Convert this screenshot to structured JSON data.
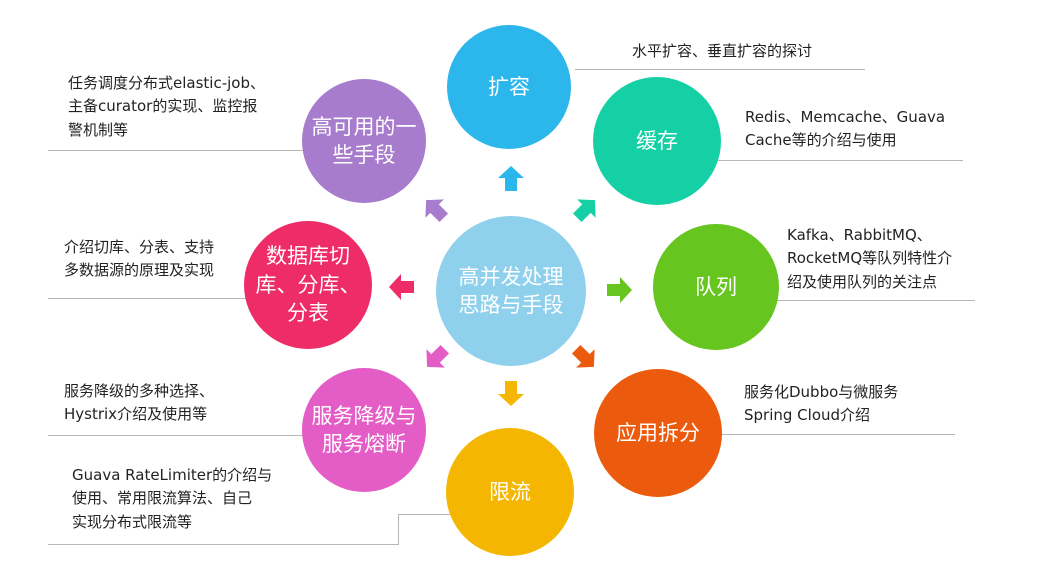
{
  "center": {
    "label": "高并发处理\n思路与手段",
    "color": "#8fd0ec"
  },
  "nodes": [
    {
      "id": "kuorong",
      "label": "扩容",
      "color": "#2bb6ec",
      "desc": "水平扩容、垂直扩容的探讨"
    },
    {
      "id": "huancun",
      "label": "缓存",
      "color": "#14d0a4",
      "desc": "Redis、Memcache、Guava\nCache等的介绍与使用"
    },
    {
      "id": "duilie",
      "label": "队列",
      "color": "#66c51f",
      "desc": "Kafka、RabbitMQ、\nRocketMQ等队列特性介\n绍及使用队列的关注点"
    },
    {
      "id": "yingyong",
      "label": "应用拆分",
      "color": "#ec5a0e",
      "desc": "服务化Dubbo与微服务\nSpring Cloud介绍"
    },
    {
      "id": "xianliu",
      "label": "限流",
      "color": "#f4b600",
      "desc": "Guava RateLimiter的介绍与\n使用、常用限流算法、自己\n实现分布式限流等"
    },
    {
      "id": "jiangji",
      "label": "服务降级与\n服务熔断",
      "color": "#e45cc6",
      "desc": "服务降级的多种选择、\nHystrix介绍及使用等"
    },
    {
      "id": "shujuku",
      "label": "数据库切\n库、分库、\n分表",
      "color": "#ee2c68",
      "desc": "介绍切库、分表、支持\n多数据源的原理及实现"
    },
    {
      "id": "gaokeyong",
      "label": "高可用的一\n些手段",
      "color": "#a77ccc",
      "desc": "任务调度分布式elastic-job、\n主备curator的实现、监控报\n警机制等"
    }
  ],
  "colors": {
    "line": "#b7b7b7",
    "text": "#222222"
  }
}
